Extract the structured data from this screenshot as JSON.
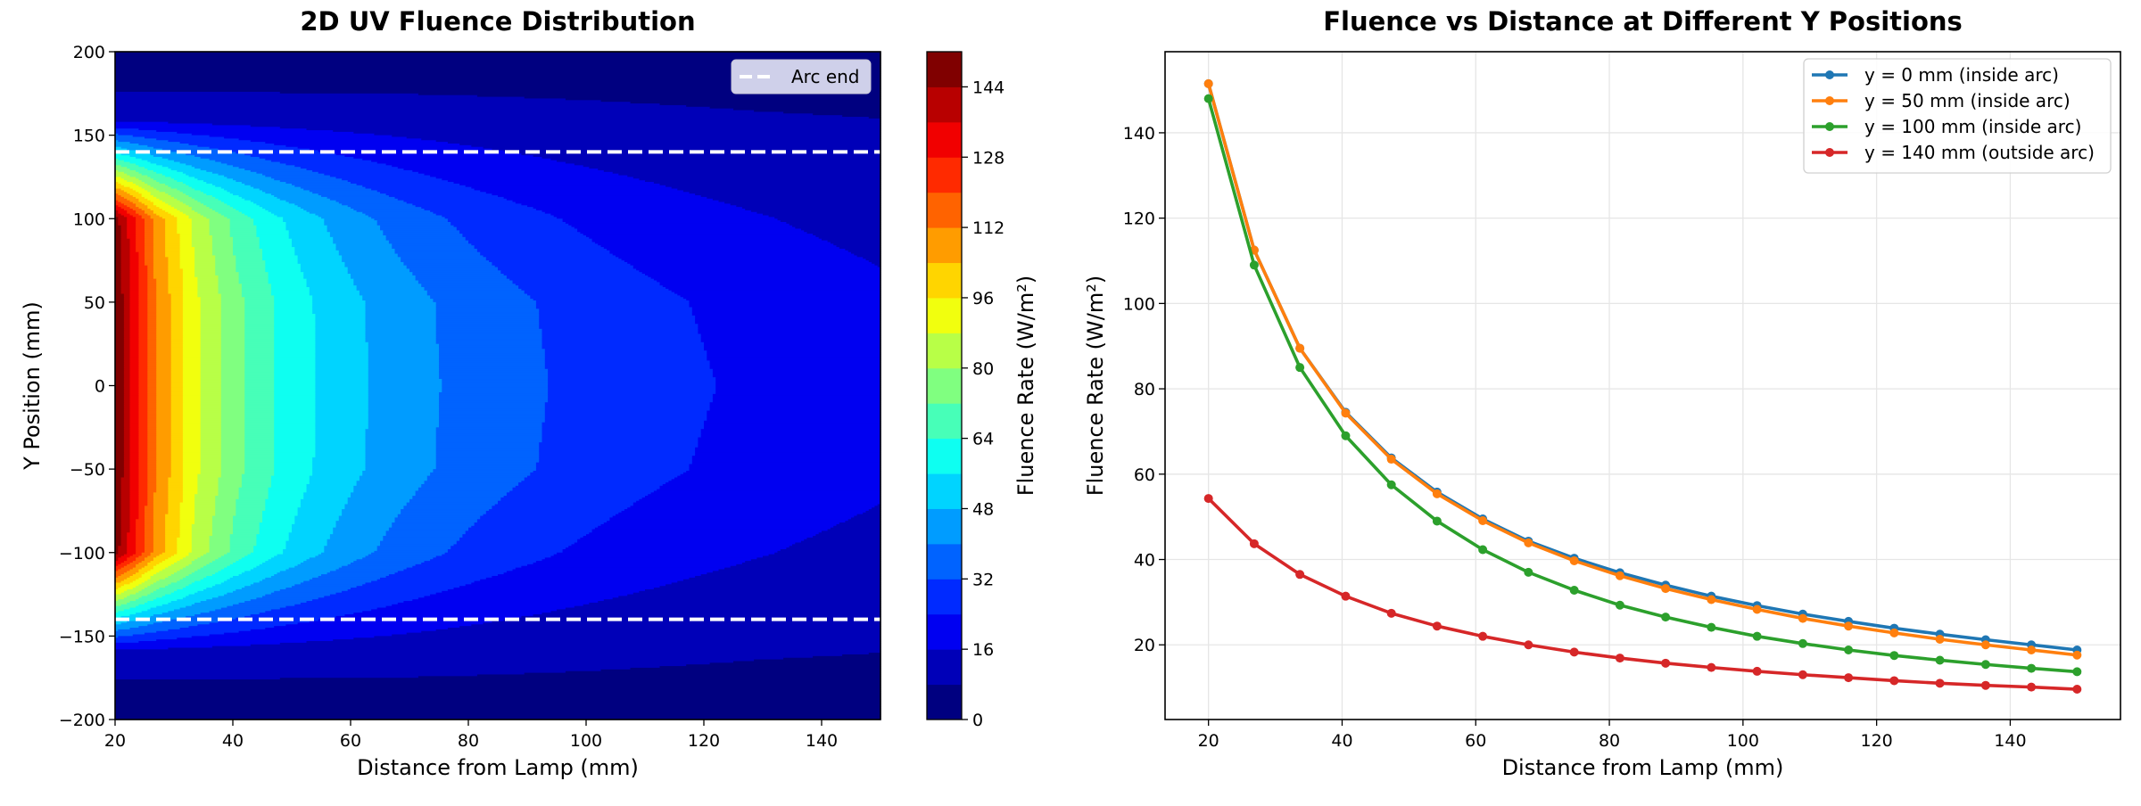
{
  "chart_data": [
    {
      "type": "heatmap",
      "title": "2D UV Fluence Distribution",
      "xlabel": "Distance from Lamp (mm)",
      "ylabel": "Y Position (mm)",
      "xlim": [
        20,
        150
      ],
      "ylim": [
        -200,
        200
      ],
      "xticks": [
        20,
        40,
        60,
        80,
        100,
        120,
        140
      ],
      "yticks": [
        -200,
        -150,
        -100,
        -50,
        0,
        50,
        100,
        150,
        200
      ],
      "colormap": "jet",
      "levels": [
        0,
        8,
        16,
        24,
        32,
        40,
        48,
        56,
        64,
        72,
        80,
        88,
        96,
        104,
        112,
        120,
        128,
        136,
        144,
        152
      ],
      "colorbar": {
        "label": "Fluence Rate (W/m²)",
        "ticks": [
          0,
          16,
          32,
          48,
          64,
          80,
          96,
          112,
          128,
          144
        ]
      },
      "arc_end_lines": {
        "y": [
          140,
          -140
        ],
        "style": "dashed",
        "color": "#ffffff"
      },
      "legend": {
        "position": "top-right",
        "entries": [
          "Arc end"
        ]
      },
      "field": {
        "x": [
          20,
          26.84,
          33.68,
          40.53,
          47.37,
          54.21,
          61.05,
          67.89,
          74.74,
          81.58,
          88.42,
          95.26,
          102.11,
          108.95,
          115.79,
          122.63,
          129.47,
          136.32,
          143.16,
          150
        ],
        "y": [
          0,
          50,
          100,
          140,
          160,
          200
        ],
        "z": [
          [
            151.5,
            112.5,
            89.5,
            74.5,
            63.8,
            55.8,
            49.5,
            44.3,
            40.3,
            36.9,
            34.0,
            31.4,
            29.2,
            27.2,
            25.5,
            23.9,
            22.5,
            21.2,
            20.0,
            18.8
          ],
          [
            151.5,
            112.5,
            89.5,
            74.3,
            63.5,
            55.4,
            49.1,
            43.9,
            39.7,
            36.2,
            33.2,
            30.6,
            28.3,
            26.2,
            24.4,
            22.8,
            21.3,
            20.0,
            18.8,
            17.6
          ],
          [
            148.0,
            109.0,
            85.0,
            69.0,
            57.5,
            49.0,
            42.3,
            37.0,
            32.8,
            29.3,
            26.5,
            24.1,
            22.0,
            20.3,
            18.8,
            17.5,
            16.4,
            15.4,
            14.5,
            13.7
          ],
          [
            54.3,
            43.7,
            36.5,
            31.4,
            27.4,
            24.4,
            22.0,
            20.0,
            18.3,
            16.9,
            15.7,
            14.7,
            13.8,
            13.0,
            12.3,
            11.6,
            11.0,
            10.5,
            10.1,
            9.6
          ],
          [
            12.5,
            12.4,
            12.2,
            12.0,
            11.8,
            11.6,
            11.4,
            11.2,
            11.0,
            10.7,
            10.4,
            10.1,
            9.8,
            9.5,
            9.2,
            8.9,
            8.6,
            8.4,
            8.2,
            8.0
          ],
          [
            1.0,
            1.3,
            1.6,
            1.8,
            2.0,
            2.2,
            2.4,
            2.5,
            2.6,
            2.7,
            2.8,
            2.9,
            3.0,
            3.0,
            3.0,
            3.0,
            3.0,
            3.0,
            3.0,
            3.0
          ]
        ]
      }
    },
    {
      "type": "line",
      "title": "Fluence vs Distance at Different Y Positions",
      "xlabel": "Distance from Lamp (mm)",
      "ylabel": "Fluence Rate (W/m²)",
      "xlim": [
        13.5,
        156.5
      ],
      "ylim": [
        2.5,
        159
      ],
      "xticks": [
        20,
        40,
        60,
        80,
        100,
        120,
        140
      ],
      "yticks": [
        20,
        40,
        60,
        80,
        100,
        120,
        140
      ],
      "grid": true,
      "legend": {
        "position": "top-right"
      },
      "x": [
        20,
        26.84,
        33.68,
        40.53,
        47.37,
        54.21,
        61.05,
        67.89,
        74.74,
        81.58,
        88.42,
        95.26,
        102.11,
        108.95,
        115.79,
        122.63,
        129.47,
        136.32,
        143.16,
        150
      ],
      "series": [
        {
          "name": "y = 0 mm (inside arc)",
          "color": "#1f77b4",
          "values": [
            151.5,
            112.5,
            89.5,
            74.5,
            63.8,
            55.8,
            49.5,
            44.3,
            40.3,
            36.9,
            34.0,
            31.4,
            29.2,
            27.2,
            25.5,
            23.9,
            22.5,
            21.2,
            20.0,
            18.8
          ]
        },
        {
          "name": "y = 50 mm (inside arc)",
          "color": "#ff7f0e",
          "values": [
            151.5,
            112.5,
            89.5,
            74.3,
            63.5,
            55.4,
            49.1,
            43.9,
            39.7,
            36.2,
            33.2,
            30.6,
            28.3,
            26.2,
            24.4,
            22.8,
            21.3,
            20.0,
            18.8,
            17.6
          ]
        },
        {
          "name": "y = 100 mm (inside arc)",
          "color": "#2ca02c",
          "values": [
            148.0,
            109.0,
            85.0,
            69.0,
            57.5,
            49.0,
            42.3,
            37.0,
            32.8,
            29.3,
            26.5,
            24.1,
            22.0,
            20.3,
            18.8,
            17.5,
            16.4,
            15.4,
            14.5,
            13.7
          ]
        },
        {
          "name": "y = 140 mm (outside arc)",
          "color": "#d62728",
          "values": [
            54.3,
            43.7,
            36.5,
            31.4,
            27.4,
            24.4,
            22.0,
            20.0,
            18.3,
            16.9,
            15.7,
            14.7,
            13.8,
            13.0,
            12.3,
            11.6,
            11.0,
            10.5,
            10.1,
            9.6
          ]
        }
      ]
    }
  ]
}
